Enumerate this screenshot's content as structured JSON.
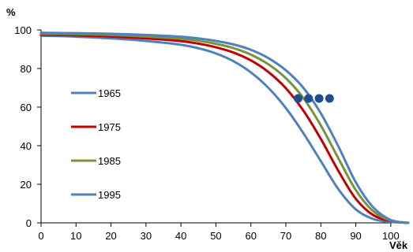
{
  "chart_data": {
    "type": "line",
    "title": "",
    "xlabel": "Věk",
    "ylabel": "%",
    "xlim": [
      0,
      105
    ],
    "ylim": [
      0,
      100
    ],
    "xticks": [
      0,
      10,
      20,
      30,
      40,
      50,
      60,
      70,
      80,
      90,
      100
    ],
    "yticks": [
      0,
      20,
      40,
      60,
      80,
      100
    ],
    "grid": false,
    "legend_position": "left-middle",
    "x": [
      0,
      10,
      20,
      30,
      40,
      45,
      50,
      55,
      60,
      65,
      70,
      75,
      80,
      85,
      90,
      95,
      100,
      105
    ],
    "series": [
      {
        "name": "1965",
        "color": "#4F81BD",
        "values": [
          97,
          96.5,
          95.6,
          94.3,
          92.3,
          90.5,
          87.8,
          83.8,
          78,
          70,
          59.5,
          46.5,
          32,
          17.5,
          7,
          2,
          0.5,
          0
        ]
      },
      {
        "name": "1975",
        "color": "#C00000",
        "values": [
          97.5,
          97.2,
          96.6,
          95.6,
          94.2,
          92.9,
          91,
          88.3,
          84.2,
          78.2,
          69.8,
          58.2,
          43.5,
          27,
          12.5,
          4,
          1,
          0
        ]
      },
      {
        "name": "1985",
        "color": "#77933C",
        "values": [
          98,
          97.8,
          97.4,
          96.6,
          95.4,
          94.4,
          92.8,
          90.6,
          87.2,
          82.2,
          75,
          64.7,
          50.5,
          33.5,
          17,
          6,
          1.2,
          0
        ]
      },
      {
        "name": "1995",
        "color": "#4F81BD",
        "values": [
          98.5,
          98.3,
          98,
          97.4,
          96.5,
          95.6,
          94.3,
          92.5,
          89.7,
          85.4,
          79.1,
          70,
          56.8,
          39.7,
          21,
          8,
          1.5,
          0
        ]
      }
    ],
    "markers": [
      {
        "x": 73.5,
        "y": 64.5,
        "color": "#1F4E8C"
      },
      {
        "x": 76.5,
        "y": 64.5,
        "color": "#1F4E8C"
      },
      {
        "x": 79.5,
        "y": 64.5,
        "color": "#1F4E8C"
      },
      {
        "x": 82.5,
        "y": 64.5,
        "color": "#1F4E8C"
      }
    ]
  }
}
